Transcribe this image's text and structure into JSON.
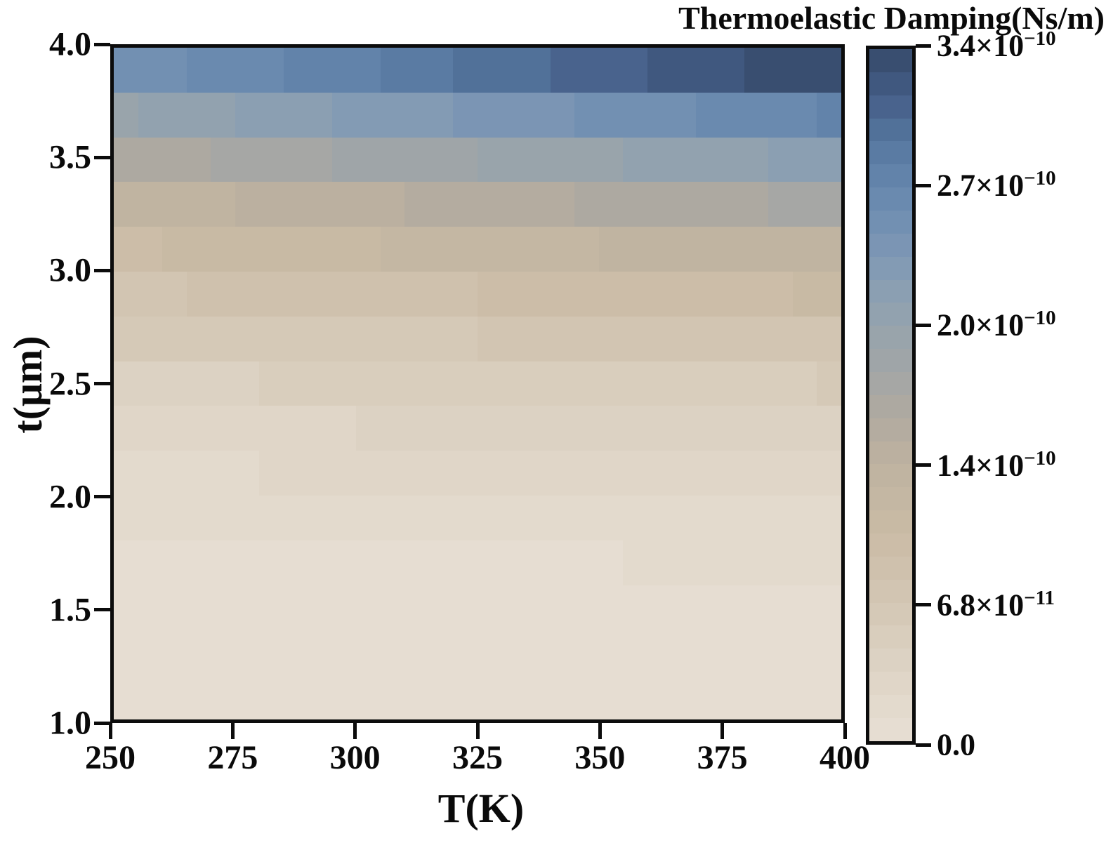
{
  "title": "Thermoelastic Damping(Ns/m)",
  "axes": {
    "x": {
      "label": "T(K)",
      "ticks": [
        "250",
        "275",
        "300",
        "325",
        "350",
        "375",
        "400"
      ]
    },
    "y": {
      "label": "t(μm)",
      "ticks": [
        "4.0",
        "3.5",
        "3.0",
        "2.5",
        "2.0",
        "1.5",
        "1.0"
      ]
    }
  },
  "colorbar": {
    "bands": 30,
    "ticks": [
      {
        "base": "0.0",
        "sup": "",
        "frac": 0.0
      },
      {
        "base": "6.8×10",
        "sup": "−11",
        "frac": 0.2
      },
      {
        "base": "1.4×10",
        "sup": "−10",
        "frac": 0.4
      },
      {
        "base": "2.0×10",
        "sup": "−10",
        "frac": 0.6
      },
      {
        "base": "2.7×10",
        "sup": "−10",
        "frac": 0.8
      },
      {
        "base": "3.4×10",
        "sup": "−10",
        "frac": 1.0
      }
    ]
  },
  "chart_data": {
    "type": "heatmap",
    "title": "Thermoelastic Damping(Ns/m)",
    "xlabel": "T(K)",
    "ylabel": "t(μm)",
    "xlim": [
      250,
      400
    ],
    "ylim": [
      1.0,
      4.0
    ],
    "value_unit": "Ns/m",
    "value_scale": 1e-12,
    "vmin": 0,
    "vmax": 340,
    "x_T_K": [
      252.5,
      257.5,
      262.5,
      267.5,
      272.5,
      277.5,
      282.5,
      287.5,
      292.5,
      297.5,
      302.5,
      307.5,
      312.5,
      317.5,
      322.5,
      327.5,
      332.5,
      337.5,
      342.5,
      347.5,
      352.5,
      357.5,
      362.5,
      367.5,
      372.5,
      377.5,
      382.5,
      387.5,
      392.5,
      397.5
    ],
    "y_t_um": [
      3.9,
      3.7,
      3.5,
      3.3,
      3.1,
      2.9,
      2.7,
      2.5,
      2.3,
      2.1,
      1.9,
      1.7,
      1.5,
      1.3,
      1.1
    ],
    "values": [
      [
        251.5,
        254.7,
        257.9,
        261.1,
        264.3,
        267.4,
        270.5,
        273.6,
        276.7,
        279.8,
        282.8,
        285.9,
        288.9,
        291.8,
        294.8,
        297.8,
        300.7,
        303.7,
        306.6,
        309.5,
        312.4,
        315.3,
        318.1,
        320.9,
        323.8,
        326.6,
        329.4,
        332.2,
        335.0,
        337.8
      ],
      [
        203.7,
        206.4,
        208.9,
        211.5,
        214.1,
        216.6,
        219.2,
        221.7,
        224.2,
        226.7,
        229.1,
        231.6,
        234.0,
        236.4,
        238.8,
        241.3,
        243.6,
        246.0,
        248.4,
        250.7,
        253.1,
        255.4,
        257.7,
        260.0,
        262.3,
        264.6,
        266.9,
        269.1,
        271.4,
        273.6
      ],
      [
        163.1,
        165.2,
        167.3,
        169.4,
        171.4,
        173.4,
        175.5,
        177.5,
        179.5,
        181.5,
        183.5,
        185.4,
        187.4,
        189.3,
        191.2,
        193.2,
        195.1,
        197.0,
        198.9,
        200.8,
        202.6,
        204.5,
        206.3,
        208.2,
        210.0,
        211.9,
        213.7,
        215.5,
        217.3,
        219.1
      ],
      [
        128.9,
        130.6,
        132.2,
        133.8,
        135.5,
        137.1,
        138.7,
        140.3,
        141.8,
        143.4,
        145.0,
        146.5,
        148.1,
        149.6,
        151.1,
        152.7,
        154.2,
        155.7,
        157.2,
        158.7,
        160.1,
        161.6,
        163.1,
        164.5,
        166.0,
        167.4,
        168.9,
        170.3,
        171.7,
        173.1
      ],
      [
        100.4,
        101.7,
        103.0,
        104.2,
        105.5,
        106.7,
        108.0,
        109.2,
        110.5,
        111.7,
        112.9,
        114.1,
        115.3,
        116.5,
        117.7,
        118.9,
        120.1,
        121.2,
        122.4,
        123.6,
        124.7,
        125.9,
        127.0,
        128.1,
        129.3,
        130.4,
        131.5,
        132.6,
        133.7,
        134.8
      ],
      [
        76.9,
        77.9,
        78.8,
        79.8,
        80.8,
        81.7,
        82.7,
        83.6,
        84.6,
        85.5,
        86.5,
        87.4,
        88.3,
        89.2,
        90.1,
        91.0,
        91.9,
        92.8,
        93.7,
        94.6,
        95.5,
        96.4,
        97.2,
        98.1,
        99.0,
        99.8,
        100.7,
        101.6,
        102.4,
        103.3
      ],
      [
        57.8,
        58.5,
        59.2,
        60.0,
        60.7,
        61.4,
        62.1,
        62.9,
        63.6,
        64.3,
        65.0,
        65.7,
        66.4,
        67.0,
        67.7,
        68.4,
        69.1,
        69.8,
        70.4,
        71.1,
        71.8,
        72.4,
        73.1,
        73.7,
        74.4,
        75.0,
        75.7,
        76.3,
        77.0,
        77.6
      ],
      [
        42.5,
        43.0,
        43.5,
        44.1,
        44.6,
        45.1,
        45.7,
        46.2,
        46.7,
        47.2,
        47.8,
        48.3,
        48.8,
        49.3,
        49.8,
        50.3,
        50.8,
        51.3,
        51.8,
        52.3,
        52.7,
        53.2,
        53.7,
        54.2,
        54.7,
        55.1,
        55.6,
        56.1,
        56.6,
        57.0
      ],
      [
        30.4,
        30.8,
        31.2,
        31.6,
        32.0,
        32.3,
        32.7,
        33.1,
        33.5,
        33.8,
        34.2,
        34.6,
        34.9,
        35.3,
        35.7,
        36.0,
        36.4,
        36.7,
        37.1,
        37.4,
        37.8,
        38.1,
        38.5,
        38.8,
        39.2,
        39.5,
        39.8,
        40.2,
        40.5,
        40.9
      ],
      [
        21.1,
        21.4,
        21.7,
        21.9,
        22.2,
        22.5,
        22.7,
        23.0,
        23.3,
        23.5,
        23.8,
        24.0,
        24.3,
        24.5,
        24.8,
        25.0,
        25.3,
        25.5,
        25.8,
        26.0,
        26.3,
        26.5,
        26.7,
        27.0,
        27.2,
        27.5,
        27.7,
        27.9,
        28.2,
        28.4
      ],
      [
        14.2,
        14.3,
        14.5,
        14.7,
        14.9,
        15.1,
        15.2,
        15.4,
        15.6,
        15.8,
        15.9,
        16.1,
        16.3,
        16.4,
        16.6,
        16.8,
        16.9,
        17.1,
        17.3,
        17.4,
        17.6,
        17.8,
        17.9,
        18.1,
        18.2,
        18.4,
        18.6,
        18.7,
        18.9,
        19.0
      ],
      [
        9.1,
        9.2,
        9.3,
        9.4,
        9.5,
        9.7,
        9.8,
        9.9,
        10.0,
        10.1,
        10.2,
        10.3,
        10.4,
        10.5,
        10.6,
        10.8,
        10.9,
        11.0,
        11.1,
        11.2,
        11.3,
        11.4,
        11.5,
        11.6,
        11.7,
        11.8,
        11.9,
        12.0,
        12.1,
        12.2
      ],
      [
        5.5,
        5.6,
        5.6,
        5.7,
        5.8,
        5.9,
        5.9,
        6.0,
        6.1,
        6.1,
        6.2,
        6.3,
        6.3,
        6.4,
        6.5,
        6.5,
        6.6,
        6.6,
        6.7,
        6.8,
        6.8,
        6.9,
        7.0,
        7.0,
        7.1,
        7.1,
        7.2,
        7.3,
        7.3,
        7.4
      ],
      [
        3.1,
        3.1,
        3.2,
        3.2,
        3.3,
        3.3,
        3.3,
        3.4,
        3.4,
        3.5,
        3.5,
        3.5,
        3.6,
        3.6,
        3.6,
        3.7,
        3.7,
        3.7,
        3.8,
        3.8,
        3.9,
        3.9,
        3.9,
        4.0,
        4.0,
        4.0,
        4.1,
        4.1,
        4.1,
        4.2
      ],
      [
        1.6,
        1.6,
        1.6,
        1.7,
        1.7,
        1.7,
        1.7,
        1.7,
        1.8,
        1.8,
        1.8,
        1.8,
        1.8,
        1.8,
        1.9,
        1.9,
        1.9,
        1.9,
        1.9,
        2.0,
        2.0,
        2.0,
        2.0,
        2.0,
        2.1,
        2.1,
        2.1,
        2.1,
        2.1,
        2.1
      ]
    ],
    "colormap_stops": [
      {
        "f": 0.0,
        "color": "#e8dfd4"
      },
      {
        "f": 0.1,
        "color": "#ded4c6"
      },
      {
        "f": 0.2,
        "color": "#d3c7b4"
      },
      {
        "f": 0.3,
        "color": "#cabba5"
      },
      {
        "f": 0.4,
        "color": "#beb2a0"
      },
      {
        "f": 0.47,
        "color": "#b0aaa0"
      },
      {
        "f": 0.53,
        "color": "#a3a6a6"
      },
      {
        "f": 0.6,
        "color": "#96a3ad"
      },
      {
        "f": 0.67,
        "color": "#879db4"
      },
      {
        "f": 0.73,
        "color": "#7793b4"
      },
      {
        "f": 0.8,
        "color": "#6687ae"
      },
      {
        "f": 0.87,
        "color": "#55769e"
      },
      {
        "f": 0.93,
        "color": "#455e88"
      },
      {
        "f": 1.0,
        "color": "#354968"
      }
    ]
  }
}
